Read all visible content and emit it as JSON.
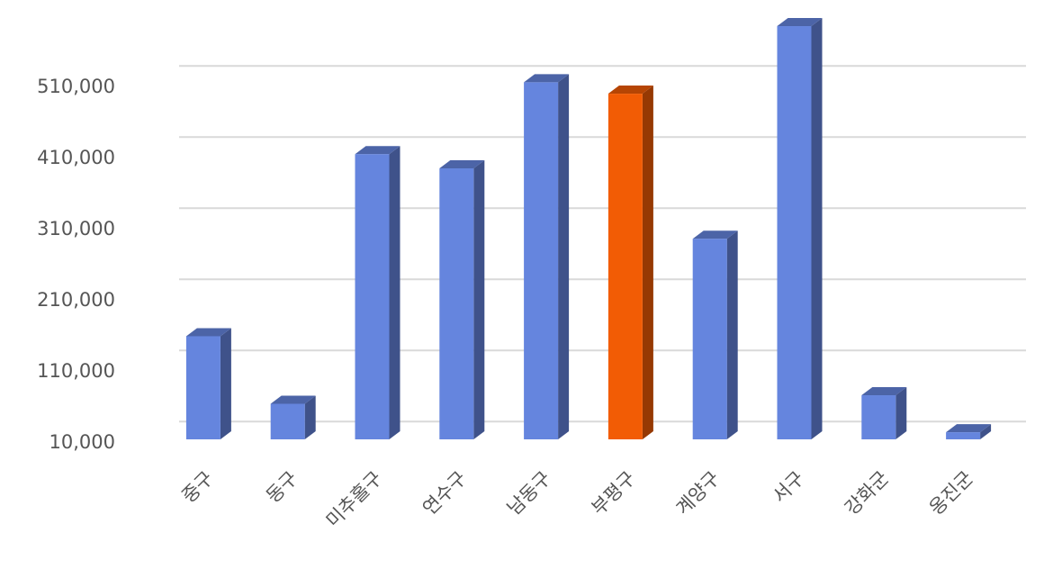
{
  "chart_data": {
    "type": "bar3d",
    "categories": [
      "중구",
      "동구",
      "미추홀구",
      "연수구",
      "남동구",
      "부평구",
      "계양구",
      "서구",
      "강화군",
      "옹진군"
    ],
    "values": [
      155000,
      60000,
      411000,
      391000,
      512000,
      496000,
      292000,
      591000,
      72000,
      20000
    ],
    "colors": [
      "#6585de",
      "#6585de",
      "#6585de",
      "#6585de",
      "#6585de",
      "#f25c05",
      "#6585de",
      "#6585de",
      "#6585de",
      "#6585de"
    ],
    "ylim": [
      10000,
      600000
    ],
    "yticks": [
      {
        "value": 10000,
        "label": "10,000"
      },
      {
        "value": 110000,
        "label": "110,000"
      },
      {
        "value": 210000,
        "label": "210,000"
      },
      {
        "value": 310000,
        "label": "310,000"
      },
      {
        "value": 410000,
        "label": "410,000"
      },
      {
        "value": 510000,
        "label": "510,000"
      }
    ],
    "grid": true
  }
}
